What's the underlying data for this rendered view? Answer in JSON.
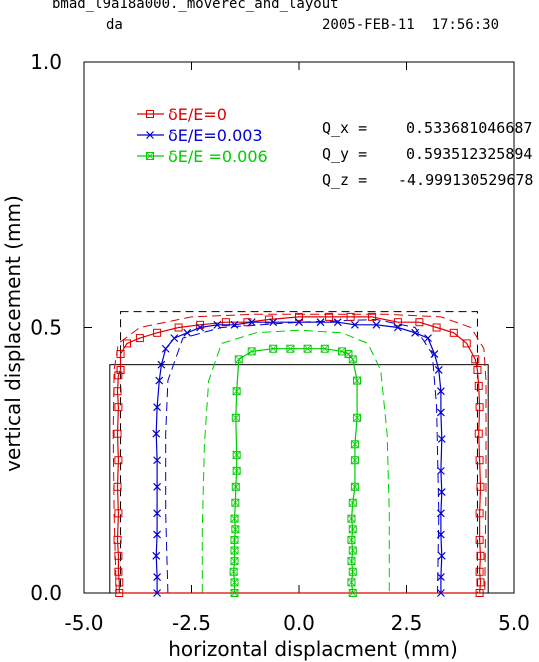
{
  "header": {
    "title_line1": "bmad_l9a18a000._moverec_and_layout",
    "title_line2": "da",
    "datetime": "2005-FEB-11  17:56:30"
  },
  "tunes": [
    {
      "label": "Q_x  =",
      "value": "0.533681046687"
    },
    {
      "label": "Q_y  =",
      "value": "0.593512325894"
    },
    {
      "label": "Q_z  =",
      "value": "-4.999130529678"
    }
  ],
  "chart_data": {
    "type": "line",
    "title": "",
    "xlabel": "horizontal displacment (mm)",
    "ylabel": "vertical displacement (mm)",
    "xlim": [
      -5.0,
      5.0
    ],
    "ylim": [
      0.0,
      1.0
    ],
    "xticks": [
      "-5.0",
      "-2.5",
      "0.0",
      "2.5",
      "5.0"
    ],
    "yticks": [
      "0.0",
      "0.5",
      "1.0"
    ],
    "grid": false,
    "legend_position": "top-left",
    "series": [
      {
        "name": "δE/E=0",
        "color": "#e00000",
        "marker": "square",
        "points": [
          [
            -4.15,
            0.42
          ],
          [
            -4.2,
            0.41
          ],
          [
            -4.22,
            0.38
          ],
          [
            -4.2,
            0.35
          ],
          [
            -4.22,
            0.3
          ],
          [
            -4.2,
            0.25
          ],
          [
            -4.22,
            0.2
          ],
          [
            -4.2,
            0.15
          ],
          [
            -4.22,
            0.1
          ],
          [
            -4.2,
            0.07
          ],
          [
            -4.2,
            0.04
          ],
          [
            -4.18,
            0.02
          ],
          [
            -4.18,
            0.0
          ],
          [
            4.2,
            0.0
          ],
          [
            4.22,
            0.02
          ],
          [
            4.2,
            0.04
          ],
          [
            4.22,
            0.07
          ],
          [
            4.2,
            0.1
          ],
          [
            4.2,
            0.15
          ],
          [
            4.22,
            0.2
          ],
          [
            4.2,
            0.25
          ],
          [
            4.18,
            0.3
          ],
          [
            4.2,
            0.35
          ],
          [
            4.18,
            0.39
          ],
          [
            4.15,
            0.42
          ],
          [
            4.1,
            0.44
          ],
          [
            3.9,
            0.47
          ],
          [
            3.6,
            0.49
          ],
          [
            3.2,
            0.5
          ],
          [
            2.8,
            0.51
          ],
          [
            2.3,
            0.51
          ],
          [
            1.7,
            0.52
          ],
          [
            1.2,
            0.52
          ],
          [
            0.7,
            0.52
          ],
          [
            0.0,
            0.52
          ],
          [
            -0.7,
            0.515
          ],
          [
            -1.2,
            0.51
          ],
          [
            -1.7,
            0.51
          ],
          [
            -2.3,
            0.505
          ],
          [
            -2.8,
            0.5
          ],
          [
            -3.3,
            0.49
          ],
          [
            -3.7,
            0.48
          ],
          [
            -4.0,
            0.47
          ],
          [
            -4.15,
            0.45
          ],
          [
            -4.15,
            0.42
          ]
        ],
        "open_contour": false
      },
      {
        "name": "δE/E=0.003",
        "color": "#0000d0",
        "marker": "x",
        "points": [
          [
            -3.3,
            0.0
          ],
          [
            -3.3,
            0.03
          ],
          [
            -3.32,
            0.07
          ],
          [
            -3.3,
            0.11
          ],
          [
            -3.3,
            0.15
          ],
          [
            -3.3,
            0.2
          ],
          [
            -3.3,
            0.25
          ],
          [
            -3.32,
            0.3
          ],
          [
            -3.3,
            0.35
          ],
          [
            -3.25,
            0.4
          ],
          [
            -3.2,
            0.43
          ],
          [
            -3.1,
            0.46
          ],
          [
            -2.9,
            0.48
          ],
          [
            -2.6,
            0.49
          ],
          [
            -2.3,
            0.5
          ],
          [
            -1.9,
            0.505
          ],
          [
            -1.5,
            0.505
          ],
          [
            -1.1,
            0.51
          ],
          [
            -0.6,
            0.51
          ],
          [
            0.0,
            0.51
          ],
          [
            0.5,
            0.51
          ],
          [
            0.9,
            0.51
          ],
          [
            1.3,
            0.505
          ],
          [
            1.8,
            0.505
          ],
          [
            2.3,
            0.5
          ],
          [
            2.7,
            0.49
          ],
          [
            3.0,
            0.48
          ],
          [
            3.15,
            0.45
          ],
          [
            3.25,
            0.42
          ],
          [
            3.3,
            0.38
          ],
          [
            3.3,
            0.34
          ],
          [
            3.32,
            0.29
          ],
          [
            3.3,
            0.23
          ],
          [
            3.32,
            0.19
          ],
          [
            3.3,
            0.15
          ],
          [
            3.3,
            0.11
          ],
          [
            3.32,
            0.07
          ],
          [
            3.3,
            0.03
          ],
          [
            3.3,
            0.0
          ]
        ],
        "open_contour": true
      },
      {
        "name": "δE/E =0.006",
        "color": "#00cc00",
        "marker": "boxx",
        "points": [
          [
            -1.5,
            0.0
          ],
          [
            -1.5,
            0.02
          ],
          [
            -1.52,
            0.04
          ],
          [
            -1.5,
            0.06
          ],
          [
            -1.5,
            0.08
          ],
          [
            -1.5,
            0.1
          ],
          [
            -1.48,
            0.12
          ],
          [
            -1.5,
            0.14
          ],
          [
            -1.48,
            0.17
          ],
          [
            -1.47,
            0.2
          ],
          [
            -1.45,
            0.23
          ],
          [
            -1.45,
            0.26
          ],
          [
            -1.47,
            0.33
          ],
          [
            -1.45,
            0.38
          ],
          [
            -1.4,
            0.44
          ],
          [
            -1.1,
            0.455
          ],
          [
            -0.6,
            0.46
          ],
          [
            -0.2,
            0.46
          ],
          [
            0.2,
            0.46
          ],
          [
            0.6,
            0.46
          ],
          [
            1.0,
            0.455
          ],
          [
            1.15,
            0.45
          ],
          [
            1.25,
            0.44
          ],
          [
            1.35,
            0.4
          ],
          [
            1.35,
            0.33
          ],
          [
            1.3,
            0.28
          ],
          [
            1.3,
            0.25
          ],
          [
            1.3,
            0.2
          ],
          [
            1.25,
            0.17
          ],
          [
            1.22,
            0.14
          ],
          [
            1.25,
            0.12
          ],
          [
            1.22,
            0.1
          ],
          [
            1.25,
            0.08
          ],
          [
            1.22,
            0.06
          ],
          [
            1.25,
            0.04
          ],
          [
            1.22,
            0.02
          ],
          [
            1.25,
            0.0
          ]
        ],
        "open_contour": true
      }
    ],
    "dashed_series": [
      {
        "color": "#e00000",
        "points": [
          [
            -4.25,
            0.0
          ],
          [
            -4.3,
            0.15
          ],
          [
            -4.32,
            0.3
          ],
          [
            -4.3,
            0.42
          ],
          [
            -4.2,
            0.47
          ],
          [
            -3.7,
            0.5
          ],
          [
            -2.5,
            0.52
          ],
          [
            -1.0,
            0.525
          ],
          [
            0.5,
            0.525
          ],
          [
            2.0,
            0.525
          ],
          [
            3.3,
            0.52
          ],
          [
            4.0,
            0.5
          ],
          [
            4.3,
            0.46
          ],
          [
            4.35,
            0.4
          ],
          [
            4.35,
            0.2
          ],
          [
            4.32,
            0.0
          ]
        ]
      },
      {
        "color": "#0000d0",
        "points": [
          [
            -3.05,
            0.0
          ],
          [
            -3.1,
            0.15
          ],
          [
            -3.1,
            0.3
          ],
          [
            -3.05,
            0.4
          ],
          [
            -2.7,
            0.48
          ],
          [
            -1.8,
            0.5
          ],
          [
            0.0,
            0.51
          ],
          [
            1.8,
            0.515
          ],
          [
            2.7,
            0.5
          ],
          [
            3.1,
            0.45
          ],
          [
            3.2,
            0.35
          ],
          [
            3.25,
            0.15
          ],
          [
            3.22,
            0.0
          ]
        ]
      },
      {
        "color": "#00cc00",
        "points": [
          [
            -2.25,
            0.0
          ],
          [
            -2.25,
            0.12
          ],
          [
            -2.2,
            0.28
          ],
          [
            -2.1,
            0.4
          ],
          [
            -1.8,
            0.47
          ],
          [
            -1.0,
            0.49
          ],
          [
            0.0,
            0.495
          ],
          [
            1.0,
            0.49
          ],
          [
            1.6,
            0.47
          ],
          [
            1.9,
            0.42
          ],
          [
            2.05,
            0.3
          ],
          [
            2.1,
            0.15
          ],
          [
            2.1,
            0.0
          ]
        ]
      }
    ],
    "reference_boxes": [
      {
        "style": "solid",
        "x": [
          -4.4,
          4.4
        ],
        "y": [
          0.0,
          0.43
        ]
      },
      {
        "style": "dashed",
        "x": [
          -4.15,
          4.15
        ],
        "y": [
          0.0,
          0.53
        ]
      }
    ]
  }
}
